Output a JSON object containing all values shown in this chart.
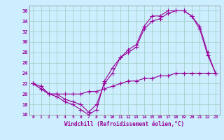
{
  "xlabel": "Windchill (Refroidissement éolien,°C)",
  "bg_color": "#cceeff",
  "line_color": "#990099",
  "grid_color": "#99ccbb",
  "xlim": [
    -0.5,
    23.5
  ],
  "ylim": [
    16,
    37
  ],
  "yticks": [
    16,
    18,
    20,
    22,
    24,
    26,
    28,
    30,
    32,
    34,
    36
  ],
  "xticks": [
    0,
    1,
    2,
    3,
    4,
    5,
    6,
    7,
    8,
    9,
    10,
    11,
    12,
    13,
    14,
    15,
    16,
    17,
    18,
    19,
    20,
    21,
    22,
    23
  ],
  "line1": {
    "x": [
      0,
      1,
      2,
      3,
      4,
      5,
      6,
      7,
      8,
      9,
      10,
      11,
      12,
      13,
      14,
      15,
      16,
      17,
      18,
      19,
      20,
      21,
      22,
      23
    ],
    "y": [
      22,
      21,
      20,
      19.5,
      18.5,
      18,
      17,
      16,
      17,
      22.5,
      25,
      27,
      28.5,
      29.5,
      33,
      35,
      35,
      36,
      36,
      36,
      35,
      32.5,
      27.5,
      24
    ]
  },
  "line2": {
    "x": [
      0,
      1,
      2,
      3,
      4,
      5,
      6,
      7,
      8,
      9,
      10,
      11,
      12,
      13,
      14,
      15,
      16,
      17,
      18,
      19,
      20,
      21,
      22,
      23
    ],
    "y": [
      22,
      21,
      20,
      20,
      19,
      18.5,
      18,
      16.5,
      18,
      22,
      24,
      27,
      28,
      29,
      32.5,
      34,
      34.5,
      35.5,
      36,
      36,
      35,
      33,
      28,
      24
    ]
  },
  "line3": {
    "x": [
      0,
      1,
      2,
      3,
      4,
      5,
      6,
      7,
      8,
      9,
      10,
      11,
      12,
      13,
      14,
      15,
      16,
      17,
      18,
      19,
      20,
      21,
      22,
      23
    ],
    "y": [
      22,
      21.5,
      20,
      20,
      20,
      20,
      20,
      20.5,
      20.5,
      21,
      21.5,
      22,
      22.5,
      22.5,
      23,
      23,
      23.5,
      23.5,
      24,
      24,
      24,
      24,
      24,
      24
    ]
  }
}
